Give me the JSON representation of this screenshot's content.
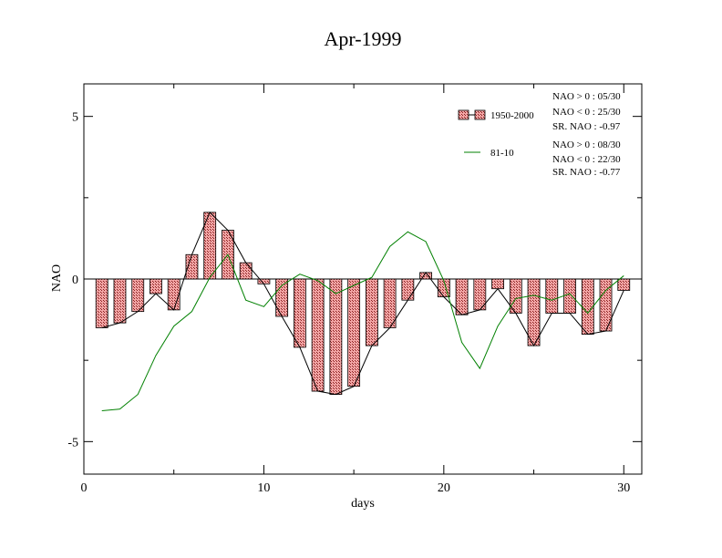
{
  "chart_data": {
    "type": "bar",
    "title": "Apr-1999",
    "xlabel": "days",
    "ylabel": "NAO",
    "xlim": [
      0,
      31
    ],
    "ylim": [
      -6,
      6
    ],
    "xticks": [
      0,
      10,
      20,
      30
    ],
    "yticks": [
      -5,
      0,
      5
    ],
    "xtick_labels": [
      "0",
      "10",
      "20",
      "30"
    ],
    "ytick_labels": [
      "-5",
      "0",
      "5"
    ],
    "x": [
      1,
      2,
      3,
      4,
      5,
      6,
      7,
      8,
      9,
      10,
      11,
      12,
      13,
      14,
      15,
      16,
      17,
      18,
      19,
      20,
      21,
      22,
      23,
      24,
      25,
      26,
      27,
      28,
      29,
      30
    ],
    "series": [
      {
        "name": "1950-2000",
        "kind": "bar",
        "color": "#f08080",
        "values": [
          -1.5,
          -1.35,
          -1.0,
          -0.45,
          -0.95,
          0.75,
          2.05,
          1.5,
          0.5,
          -0.15,
          -1.15,
          -2.1,
          -3.45,
          -3.55,
          -3.3,
          -2.05,
          -1.5,
          -0.65,
          0.2,
          -0.55,
          -1.1,
          -0.95,
          -0.3,
          -1.05,
          -2.05,
          -1.05,
          -1.05,
          -1.7,
          -1.6,
          -0.35
        ],
        "stats": [
          "NAO > 0 : 05/30",
          "NAO < 0 : 25/30",
          "SR. NAO : -0.97"
        ]
      },
      {
        "name": "81-10",
        "kind": "line",
        "color": "#008000",
        "values": [
          -4.05,
          -4.0,
          -3.55,
          -2.35,
          -1.45,
          -1.0,
          0.05,
          0.75,
          -0.65,
          -0.85,
          -0.2,
          0.15,
          -0.05,
          -0.45,
          -0.2,
          0.05,
          1.0,
          1.45,
          1.15,
          -0.05,
          -1.95,
          -2.75,
          -1.45,
          -0.6,
          -0.5,
          -0.65,
          -0.45,
          -1.05,
          -0.35,
          0.1
        ],
        "stats": [
          "NAO > 0 : 08/30",
          "NAO < 0 : 22/30",
          "SR. NAO : -0.77"
        ]
      }
    ],
    "grid": false,
    "legend_position": "top-right"
  }
}
